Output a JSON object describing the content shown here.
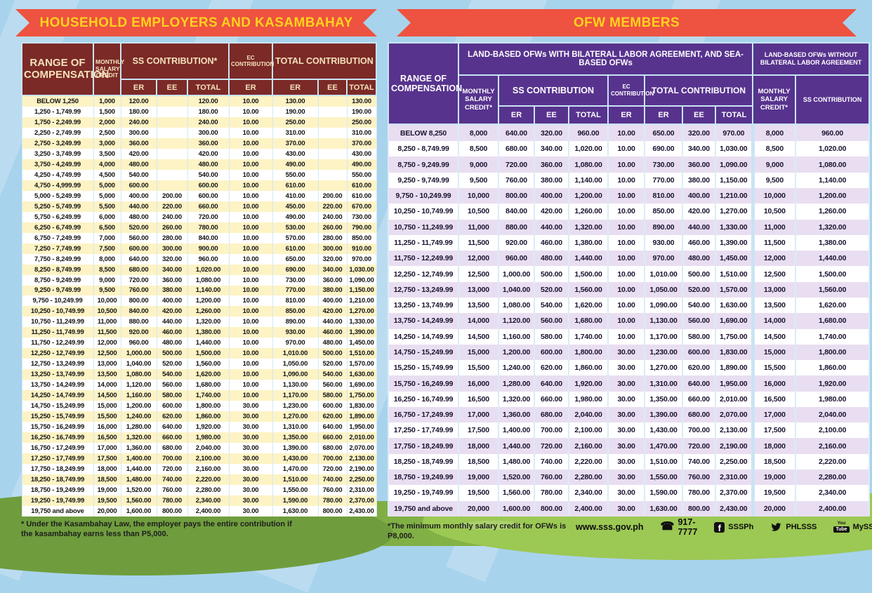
{
  "household": {
    "banner": "HOUSEHOLD EMPLOYERS AND KASAMBAHAY",
    "header": {
      "range": "RANGE OF COMPENSATION",
      "msc": "MONTHLY SALARY CREDIT",
      "ss": "SS CONTRIBUTION*",
      "ec": "EC CONTRIBUTION",
      "total": "TOTAL CONTRIBUTION",
      "subcols": [
        "ER",
        "EE",
        "TOTAL",
        "ER",
        "ER",
        "EE",
        "TOTAL"
      ]
    },
    "rows": [
      [
        "BELOW 1,250",
        "1,000",
        "120.00",
        "",
        "120.00",
        "10.00",
        "130.00",
        "",
        "130.00"
      ],
      [
        "1,250 - 1,749.99",
        "1,500",
        "180.00",
        "",
        "180.00",
        "10.00",
        "190.00",
        "",
        "190.00"
      ],
      [
        "1,750 - 2,249.99",
        "2,000",
        "240.00",
        "",
        "240.00",
        "10.00",
        "250.00",
        "",
        "250.00"
      ],
      [
        "2,250 - 2,749.99",
        "2,500",
        "300.00",
        "",
        "300.00",
        "10.00",
        "310.00",
        "",
        "310.00"
      ],
      [
        "2,750 - 3,249.99",
        "3,000",
        "360.00",
        "",
        "360.00",
        "10.00",
        "370.00",
        "",
        "370.00"
      ],
      [
        "3,250 - 3,749.99",
        "3,500",
        "420.00",
        "",
        "420.00",
        "10.00",
        "430.00",
        "",
        "430.00"
      ],
      [
        "3,750 - 4,249.99",
        "4,000",
        "480.00",
        "",
        "480.00",
        "10.00",
        "490.00",
        "",
        "490.00"
      ],
      [
        "4,250 - 4,749.99",
        "4,500",
        "540.00",
        "",
        "540.00",
        "10.00",
        "550.00",
        "",
        "550.00"
      ],
      [
        "4,750 - 4,999.99",
        "5,000",
        "600.00",
        "",
        "600.00",
        "10.00",
        "610.00",
        "",
        "610.00"
      ],
      [
        "5,000 - 5,249.99",
        "5,000",
        "400.00",
        "200.00",
        "600.00",
        "10.00",
        "410.00",
        "200.00",
        "610.00"
      ],
      [
        "5,250 - 5,749.99",
        "5,500",
        "440.00",
        "220.00",
        "660.00",
        "10.00",
        "450.00",
        "220.00",
        "670.00"
      ],
      [
        "5,750 - 6,249.99",
        "6,000",
        "480.00",
        "240.00",
        "720.00",
        "10.00",
        "490.00",
        "240.00",
        "730.00"
      ],
      [
        "6,250 - 6,749.99",
        "6,500",
        "520.00",
        "260.00",
        "780.00",
        "10.00",
        "530.00",
        "260.00",
        "790.00"
      ],
      [
        "6,750 - 7,249.99",
        "7,000",
        "560.00",
        "280.00",
        "840.00",
        "10.00",
        "570.00",
        "280.00",
        "850.00"
      ],
      [
        "7,250 - 7,749.99",
        "7,500",
        "600.00",
        "300.00",
        "900.00",
        "10.00",
        "610.00",
        "300.00",
        "910.00"
      ],
      [
        "7,750 - 8,249.99",
        "8,000",
        "640.00",
        "320.00",
        "960.00",
        "10.00",
        "650.00",
        "320.00",
        "970.00"
      ],
      [
        "8,250 - 8,749.99",
        "8,500",
        "680.00",
        "340.00",
        "1,020.00",
        "10.00",
        "690.00",
        "340.00",
        "1,030.00"
      ],
      [
        "8,750 - 9,249.99",
        "9,000",
        "720.00",
        "360.00",
        "1,080.00",
        "10.00",
        "730.00",
        "360.00",
        "1,090.00"
      ],
      [
        "9,250 - 9,749.99",
        "9,500",
        "760.00",
        "380.00",
        "1,140.00",
        "10.00",
        "770.00",
        "380.00",
        "1,150.00"
      ],
      [
        "9,750 - 10,249.99",
        "10,000",
        "800.00",
        "400.00",
        "1,200.00",
        "10.00",
        "810.00",
        "400.00",
        "1,210.00"
      ],
      [
        "10,250 - 10,749.99",
        "10,500",
        "840.00",
        "420.00",
        "1,260.00",
        "10.00",
        "850.00",
        "420.00",
        "1,270.00"
      ],
      [
        "10,750 - 11,249.99",
        "11,000",
        "880.00",
        "440.00",
        "1,320.00",
        "10.00",
        "890.00",
        "440.00",
        "1,330.00"
      ],
      [
        "11,250 - 11,749.99",
        "11,500",
        "920.00",
        "460.00",
        "1,380.00",
        "10.00",
        "930.00",
        "460.00",
        "1,390.00"
      ],
      [
        "11,750 - 12,249.99",
        "12,000",
        "960.00",
        "480.00",
        "1,440.00",
        "10.00",
        "970.00",
        "480.00",
        "1,450.00"
      ],
      [
        "12,250 - 12,749.99",
        "12,500",
        "1,000.00",
        "500.00",
        "1,500.00",
        "10.00",
        "1,010.00",
        "500.00",
        "1,510.00"
      ],
      [
        "12,750 - 13,249.99",
        "13,000",
        "1,040.00",
        "520.00",
        "1,560.00",
        "10.00",
        "1,050.00",
        "520.00",
        "1,570.00"
      ],
      [
        "13,250 - 13,749.99",
        "13,500",
        "1,080.00",
        "540.00",
        "1,620.00",
        "10.00",
        "1,090.00",
        "540.00",
        "1,630.00"
      ],
      [
        "13,750 - 14,249.99",
        "14,000",
        "1,120.00",
        "560.00",
        "1,680.00",
        "10.00",
        "1,130.00",
        "560.00",
        "1,690.00"
      ],
      [
        "14,250 - 14,749.99",
        "14,500",
        "1,160.00",
        "580.00",
        "1,740.00",
        "10.00",
        "1,170.00",
        "580.00",
        "1,750.00"
      ],
      [
        "14,750 - 15,249.99",
        "15,000",
        "1,200.00",
        "600.00",
        "1,800.00",
        "30.00",
        "1,230.00",
        "600.00",
        "1,830.00"
      ],
      [
        "15,250 - 15,749.99",
        "15,500",
        "1,240.00",
        "620.00",
        "1,860.00",
        "30.00",
        "1,270.00",
        "620.00",
        "1,890.00"
      ],
      [
        "15,750 - 16,249.99",
        "16,000",
        "1,280.00",
        "640.00",
        "1,920.00",
        "30.00",
        "1,310.00",
        "640.00",
        "1,950.00"
      ],
      [
        "16,250 - 16,749.99",
        "16,500",
        "1,320.00",
        "660.00",
        "1,980.00",
        "30.00",
        "1,350.00",
        "660.00",
        "2,010.00"
      ],
      [
        "16,750 - 17,249.99",
        "17,000",
        "1,360.00",
        "680.00",
        "2,040.00",
        "30.00",
        "1,390.00",
        "680.00",
        "2,070.00"
      ],
      [
        "17,250 - 17,749.99",
        "17,500",
        "1,400.00",
        "700.00",
        "2,100.00",
        "30.00",
        "1,430.00",
        "700.00",
        "2,130.00"
      ],
      [
        "17,750 - 18,249.99",
        "18,000",
        "1,440.00",
        "720.00",
        "2,160.00",
        "30.00",
        "1,470.00",
        "720.00",
        "2,190.00"
      ],
      [
        "18,250 - 18,749.99",
        "18,500",
        "1,480.00",
        "740.00",
        "2,220.00",
        "30.00",
        "1,510.00",
        "740.00",
        "2,250.00"
      ],
      [
        "18,750 - 19,249.99",
        "19,000",
        "1,520.00",
        "760.00",
        "2,280.00",
        "30.00",
        "1,550.00",
        "760.00",
        "2,310.00"
      ],
      [
        "19,250 - 19,749.99",
        "19,500",
        "1,560.00",
        "780.00",
        "2,340.00",
        "30.00",
        "1,590.00",
        "780.00",
        "2,370.00"
      ],
      [
        "19,750 and above",
        "20,000",
        "1,600.00",
        "800.00",
        "2,400.00",
        "30.00",
        "1,630.00",
        "800.00",
        "2,430.00"
      ]
    ],
    "footnote": "* Under the Kasambahay Law, the employer pays the entire contribution if the kasambahay earns less than P5,000."
  },
  "ofw": {
    "banner": "OFW MEMBERS",
    "header": {
      "range": "RANGE OF COMPENSATION",
      "group1": "LAND-BASED OFWs WITH BILATERAL LABOR AGREEMENT, AND SEA-BASED OFWs",
      "group2": "LAND-BASED OFWs WITHOUT BILATERAL LABOR AGREEMENT",
      "msc": "MONTHLY SALARY CREDIT*",
      "ss": "SS CONTRIBUTION",
      "ec": "EC CONTRIBUTION",
      "total": "TOTAL CONTRIBUTION",
      "msc2": "MONTHLY SALARY CREDIT*",
      "ss2": "SS CONTRIBUTION",
      "subcols": [
        "ER",
        "EE",
        "TOTAL",
        "ER",
        "ER",
        "EE",
        "TOTAL"
      ]
    },
    "rows": [
      [
        "BELOW 8,250",
        "8,000",
        "640.00",
        "320.00",
        "960.00",
        "10.00",
        "650.00",
        "320.00",
        "970.00",
        "8,000",
        "960.00"
      ],
      [
        "8,250 - 8,749.99",
        "8,500",
        "680.00",
        "340.00",
        "1,020.00",
        "10.00",
        "690.00",
        "340.00",
        "1,030.00",
        "8,500",
        "1,020.00"
      ],
      [
        "8,750 - 9,249.99",
        "9,000",
        "720.00",
        "360.00",
        "1,080.00",
        "10.00",
        "730.00",
        "360.00",
        "1,090.00",
        "9,000",
        "1,080.00"
      ],
      [
        "9,250 - 9,749.99",
        "9,500",
        "760.00",
        "380.00",
        "1,140.00",
        "10.00",
        "770.00",
        "380.00",
        "1,150.00",
        "9,500",
        "1,140.00"
      ],
      [
        "9,750 - 10,249.99",
        "10,000",
        "800.00",
        "400.00",
        "1,200.00",
        "10.00",
        "810.00",
        "400.00",
        "1,210.00",
        "10,000",
        "1,200.00"
      ],
      [
        "10,250 - 10,749.99",
        "10,500",
        "840.00",
        "420.00",
        "1,260.00",
        "10.00",
        "850.00",
        "420.00",
        "1,270.00",
        "10,500",
        "1,260.00"
      ],
      [
        "10,750 - 11,249.99",
        "11,000",
        "880.00",
        "440.00",
        "1,320.00",
        "10.00",
        "890.00",
        "440.00",
        "1,330.00",
        "11,000",
        "1,320.00"
      ],
      [
        "11,250 - 11,749.99",
        "11,500",
        "920.00",
        "460.00",
        "1,380.00",
        "10.00",
        "930.00",
        "460.00",
        "1,390.00",
        "11,500",
        "1,380.00"
      ],
      [
        "11,750 - 12,249.99",
        "12,000",
        "960.00",
        "480.00",
        "1,440.00",
        "10.00",
        "970.00",
        "480.00",
        "1,450.00",
        "12,000",
        "1,440.00"
      ],
      [
        "12,250 - 12,749.99",
        "12,500",
        "1,000.00",
        "500.00",
        "1,500.00",
        "10.00",
        "1,010.00",
        "500.00",
        "1,510.00",
        "12,500",
        "1,500.00"
      ],
      [
        "12,750 - 13,249.99",
        "13,000",
        "1,040.00",
        "520.00",
        "1,560.00",
        "10.00",
        "1,050.00",
        "520.00",
        "1,570.00",
        "13,000",
        "1,560.00"
      ],
      [
        "13,250 - 13,749.99",
        "13,500",
        "1,080.00",
        "540.00",
        "1,620.00",
        "10.00",
        "1,090.00",
        "540.00",
        "1,630.00",
        "13,500",
        "1,620.00"
      ],
      [
        "13,750 - 14,249.99",
        "14,000",
        "1,120.00",
        "560.00",
        "1,680.00",
        "10.00",
        "1,130.00",
        "560.00",
        "1,690.00",
        "14,000",
        "1,680.00"
      ],
      [
        "14,250 - 14,749.99",
        "14,500",
        "1,160.00",
        "580.00",
        "1,740.00",
        "10.00",
        "1,170.00",
        "580.00",
        "1,750.00",
        "14,500",
        "1,740.00"
      ],
      [
        "14,750 - 15,249.99",
        "15,000",
        "1,200.00",
        "600.00",
        "1,800.00",
        "30.00",
        "1,230.00",
        "600.00",
        "1,830.00",
        "15,000",
        "1,800.00"
      ],
      [
        "15,250 - 15,749.99",
        "15,500",
        "1,240.00",
        "620.00",
        "1,860.00",
        "30.00",
        "1,270.00",
        "620.00",
        "1,890.00",
        "15,500",
        "1,860.00"
      ],
      [
        "15,750 - 16,249.99",
        "16,000",
        "1,280.00",
        "640.00",
        "1,920.00",
        "30.00",
        "1,310.00",
        "640.00",
        "1,950.00",
        "16,000",
        "1,920.00"
      ],
      [
        "16,250 - 16,749.99",
        "16,500",
        "1,320.00",
        "660.00",
        "1,980.00",
        "30.00",
        "1,350.00",
        "660.00",
        "2,010.00",
        "16,500",
        "1,980.00"
      ],
      [
        "16,750 - 17,249.99",
        "17,000",
        "1,360.00",
        "680.00",
        "2,040.00",
        "30.00",
        "1,390.00",
        "680.00",
        "2,070.00",
        "17,000",
        "2,040.00"
      ],
      [
        "17,250 - 17,749.99",
        "17,500",
        "1,400.00",
        "700.00",
        "2,100.00",
        "30.00",
        "1,430.00",
        "700.00",
        "2,130.00",
        "17,500",
        "2,100.00"
      ],
      [
        "17,750 - 18,249.99",
        "18,000",
        "1,440.00",
        "720.00",
        "2,160.00",
        "30.00",
        "1,470.00",
        "720.00",
        "2,190.00",
        "18,000",
        "2,160.00"
      ],
      [
        "18,250 - 18,749.99",
        "18,500",
        "1,480.00",
        "740.00",
        "2,220.00",
        "30.00",
        "1,510.00",
        "740.00",
        "2,250.00",
        "18,500",
        "2,220.00"
      ],
      [
        "18,750 - 19,249.99",
        "19,000",
        "1,520.00",
        "760.00",
        "2,280.00",
        "30.00",
        "1,550.00",
        "760.00",
        "2,310.00",
        "19,000",
        "2,280.00"
      ],
      [
        "19,250 - 19,749.99",
        "19,500",
        "1,560.00",
        "780.00",
        "2,340.00",
        "30.00",
        "1,590.00",
        "780.00",
        "2,370.00",
        "19,500",
        "2,340.00"
      ],
      [
        "19,750 and above",
        "20,000",
        "1,600.00",
        "800.00",
        "2,400.00",
        "30.00",
        "1,630.00",
        "800.00",
        "2,430.00",
        "20,000",
        "2,400.00"
      ]
    ],
    "footnote": "*The minimum monthly salary credit for OFWs is P8,000."
  },
  "footer": {
    "website": "www.sss.gov.ph",
    "phone": "917-7777",
    "facebook": "SSSPh",
    "twitter": "PHLSSS",
    "youtube": "MySSSPhilippines",
    "youtube_logo_top": "You",
    "youtube_logo_box": "Tube",
    "facebook_glyph": "f",
    "phone_glyph": "☎"
  },
  "colors": {
    "ribbon_red": "#ee5240",
    "banner_yellow": "#ffd21e",
    "household_header_maroon": "#7b2a27",
    "household_row_yellow": "#fdf3c4",
    "ofw_header_purple": "#57338e",
    "ofw_row_lavender": "#e9def1",
    "sky_blue": "#a8d3ec",
    "grass_green": "#80af45"
  }
}
